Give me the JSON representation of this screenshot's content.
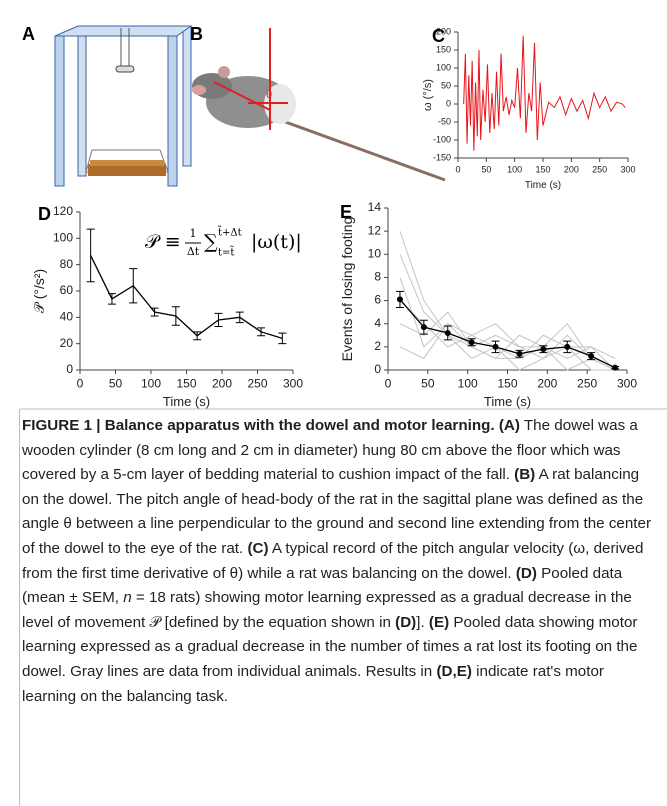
{
  "panel_labels": [
    "A",
    "B",
    "C",
    "D",
    "E"
  ],
  "chart_data": [
    {
      "type": "line",
      "xlabel": "Time (s)",
      "ylabel": "ω (°/s)",
      "color": "#e8141c",
      "x": [
        10,
        13,
        16,
        19,
        22,
        25,
        28,
        31,
        34,
        37,
        40,
        44,
        48,
        52,
        56,
        60,
        64,
        68,
        72,
        76,
        80,
        85,
        90,
        95,
        100,
        105,
        110,
        115,
        120,
        125,
        130,
        135,
        140,
        145,
        150,
        160,
        170,
        180,
        190,
        200,
        210,
        220,
        230,
        240,
        250,
        260,
        270,
        280,
        290,
        295
      ],
      "values": [
        0,
        140,
        -110,
        80,
        -60,
        120,
        -130,
        60,
        -90,
        150,
        -100,
        40,
        -50,
        110,
        -80,
        30,
        -70,
        90,
        -60,
        140,
        -20,
        20,
        -30,
        10,
        -10,
        100,
        -40,
        190,
        -80,
        30,
        -20,
        170,
        -100,
        60,
        -60,
        5,
        -10,
        20,
        -30,
        15,
        -20,
        10,
        -40,
        30,
        -10,
        20,
        -20,
        5,
        0,
        -10
      ],
      "xlim": [
        0,
        300
      ],
      "xticks": [
        0,
        50,
        100,
        150,
        200,
        250,
        300
      ],
      "ylim": [
        -150,
        200
      ],
      "yticks": [
        -150,
        -100,
        -50,
        0,
        50,
        100,
        150,
        200
      ]
    },
    {
      "type": "line",
      "xlabel": "Time (s)",
      "ylabel": "𝒫 (°/s²)",
      "color": "#000000",
      "annotation": {
        "lhs": "𝒫 ≡",
        "num": "1",
        "den": "Δt",
        "sum": "∑",
        "sup": "t̃+Δt",
        "sub": "t=t̃",
        "rhs": "|ω(t)|"
      },
      "x": [
        15,
        45,
        75,
        105,
        135,
        165,
        195,
        225,
        255,
        285
      ],
      "values": [
        87,
        54,
        64,
        44,
        41,
        26,
        38,
        40,
        29,
        24
      ],
      "errors": [
        20,
        4,
        13,
        3,
        7,
        3,
        5,
        4,
        3,
        4
      ],
      "xlim": [
        0,
        300
      ],
      "xticks": [
        0,
        50,
        100,
        150,
        200,
        250,
        300
      ],
      "ylim": [
        0,
        120
      ],
      "yticks": [
        0,
        20,
        40,
        60,
        80,
        100,
        120
      ]
    },
    {
      "type": "line",
      "xlabel": "Time (s)",
      "ylabel": "Events of losing footing",
      "color": "#000000",
      "markers": true,
      "individual_color": "#c4c4c4",
      "individual_series": [
        {
          "values": [
            10,
            5,
            3,
            2,
            1,
            3,
            2,
            1,
            2,
            0
          ]
        },
        {
          "values": [
            8,
            2,
            4,
            3,
            2,
            1,
            2,
            4,
            1,
            0
          ]
        },
        {
          "values": [
            6,
            4,
            2,
            3,
            4,
            2,
            1,
            2,
            0,
            0
          ]
        },
        {
          "values": [
            4,
            3,
            5,
            2,
            1,
            1,
            3,
            2,
            2,
            1
          ]
        },
        {
          "values": [
            12,
            6,
            3,
            1,
            2,
            0,
            1,
            3,
            1,
            0
          ]
        },
        {
          "values": [
            2,
            1,
            4,
            2,
            3,
            2,
            2,
            0,
            1,
            0
          ]
        }
      ],
      "x": [
        15,
        45,
        75,
        105,
        135,
        165,
        195,
        225,
        255,
        285
      ],
      "values": [
        6.1,
        3.7,
        3.2,
        2.4,
        2.0,
        1.4,
        1.8,
        2.0,
        1.2,
        0.2
      ],
      "errors": [
        0.7,
        0.6,
        0.6,
        0.3,
        0.5,
        0.3,
        0.3,
        0.5,
        0.3,
        0.1
      ],
      "xlim": [
        0,
        300
      ],
      "xticks": [
        0,
        50,
        100,
        150,
        200,
        250,
        300
      ],
      "ylim": [
        0,
        14
      ],
      "yticks": [
        0,
        2,
        4,
        6,
        8,
        10,
        12,
        14
      ]
    }
  ],
  "caption": [
    {
      "style": "bold",
      "text": "FIGURE 1 | Balance apparatus with the dowel and motor learning. (A)"
    },
    {
      "style": "normal",
      "text": " The dowel was a wooden cylinder (8 cm long and 2 cm in diameter) hung 80 cm above the floor which was covered by a 5-cm layer of bedding material to cushion impact of the fall. "
    },
    {
      "style": "bold",
      "text": "(B)"
    },
    {
      "style": "normal",
      "text": " A rat balancing on the dowel. The pitch angle of head-body of the rat in the sagittal plane was defined as the angle θ between a line perpendicular to the ground and second line extending from the center of the dowel to the eye of the rat. "
    },
    {
      "style": "bold",
      "text": "(C)"
    },
    {
      "style": "normal",
      "text": " A typical record of the pitch angular velocity (ω, derived from the first time derivative of θ) while a rat was balancing on the dowel. "
    },
    {
      "style": "bold",
      "text": "(D)"
    },
    {
      "style": "normal",
      "text": " Pooled data (mean ± SEM, "
    },
    {
      "style": "italic",
      "text": "n"
    },
    {
      "style": "normal",
      "text": " = 18 rats) showing motor learning expressed as a gradual decrease in the level of movement 𝒫 [defined by the equation shown in "
    },
    {
      "style": "bold",
      "text": "(D)"
    },
    {
      "style": "normal",
      "text": "]. "
    },
    {
      "style": "bold",
      "text": "(E)"
    },
    {
      "style": "normal",
      "text": " Pooled data showing motor learning expressed as a gradual decrease in the number of times a rat lost its footing on the dowel. Gray lines are data from individual animals. Results in "
    },
    {
      "style": "bold",
      "text": "(D,E)"
    },
    {
      "style": "normal",
      "text": " indicate rat's motor learning on the balancing task."
    }
  ]
}
